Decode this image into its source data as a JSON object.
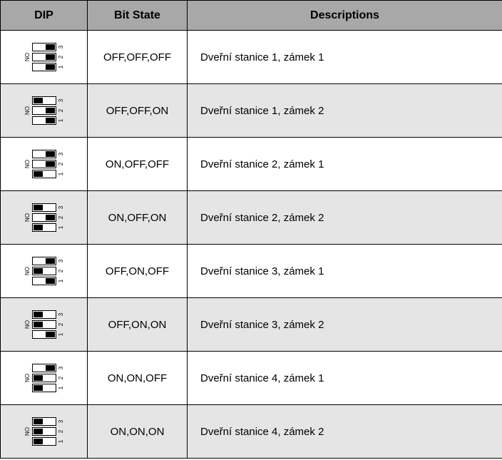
{
  "header": {
    "dip": "DIP",
    "bit": "Bit State",
    "desc": "Descriptions"
  },
  "rows": [
    {
      "bits": [
        0,
        0,
        0
      ],
      "bit_state": "OFF,OFF,OFF",
      "description": "Dveřní stanice 1, zámek 1",
      "stripe": "odd"
    },
    {
      "bits": [
        0,
        0,
        1
      ],
      "bit_state": "OFF,OFF,ON",
      "description": "Dveřní stanice 1, zámek 2",
      "stripe": "even"
    },
    {
      "bits": [
        1,
        0,
        0
      ],
      "bit_state": "ON,OFF,OFF",
      "description": "Dveřní stanice 2, zámek 1",
      "stripe": "odd"
    },
    {
      "bits": [
        1,
        0,
        1
      ],
      "bit_state": "ON,OFF,ON",
      "description": "Dveřní stanice 2, zámek 2",
      "stripe": "even"
    },
    {
      "bits": [
        0,
        1,
        0
      ],
      "bit_state": "OFF,ON,OFF",
      "description": "Dveřní stanice 3, zámek 1",
      "stripe": "odd"
    },
    {
      "bits": [
        0,
        1,
        1
      ],
      "bit_state": "OFF,ON,ON",
      "description": "Dveřní stanice 3, zámek 2",
      "stripe": "even"
    },
    {
      "bits": [
        1,
        1,
        0
      ],
      "bit_state": "ON,ON,OFF",
      "description": "Dveřní stanice 4, zámek 1",
      "stripe": "odd"
    },
    {
      "bits": [
        1,
        1,
        1
      ],
      "bit_state": "ON,ON,ON",
      "description": "Dveřní stanice 4, zámek 2",
      "stripe": "even"
    }
  ],
  "dip_on_label": "ON",
  "switch_numbers": [
    "1",
    "2",
    "3"
  ],
  "colors": {
    "header_bg": "#a8a8a8",
    "row_odd_bg": "#ffffff",
    "row_even_bg": "#e5e5e5",
    "border": "#000000"
  }
}
